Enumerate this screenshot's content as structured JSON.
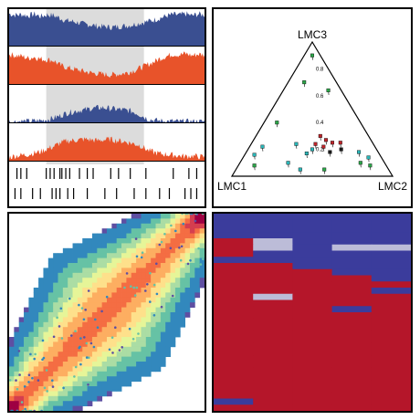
{
  "chart_data": [
    {
      "type": "area",
      "panel": "genome-tracks",
      "highlight_region_fraction": [
        0.19,
        0.69
      ],
      "series": [
        {
          "color": "#3a4f91",
          "values": [
            0.92,
            0.88,
            0.9,
            0.86,
            0.91,
            0.84,
            0.89,
            0.87,
            0.8,
            0.72,
            0.7,
            0.66,
            0.62,
            0.6,
            0.56,
            0.55,
            0.53,
            0.54,
            0.56,
            0.58,
            0.62,
            0.66,
            0.7,
            0.74,
            0.8,
            0.86,
            0.9,
            0.88,
            0.92,
            0.86,
            0.91,
            0.89
          ]
        },
        {
          "color": "#e8532a",
          "values": [
            0.85,
            0.82,
            0.8,
            0.74,
            0.78,
            0.72,
            0.7,
            0.68,
            0.55,
            0.48,
            0.44,
            0.4,
            0.36,
            0.32,
            0.3,
            0.28,
            0.26,
            0.28,
            0.3,
            0.34,
            0.4,
            0.48,
            0.56,
            0.64,
            0.74,
            0.8,
            0.86,
            0.84,
            0.88,
            0.82,
            0.86,
            0.84
          ]
        },
        {
          "color": "#3a4f91",
          "values": [
            0.02,
            0.02,
            0.03,
            0.03,
            0.04,
            0.05,
            0.08,
            0.12,
            0.18,
            0.26,
            0.3,
            0.34,
            0.36,
            0.4,
            0.42,
            0.42,
            0.4,
            0.38,
            0.36,
            0.34,
            0.28,
            0.2,
            0.1,
            0.06,
            0.04,
            0.03,
            0.03,
            0.02,
            0.02,
            0.02,
            0.02,
            0.02
          ]
        },
        {
          "color": "#e8532a",
          "values": [
            0.1,
            0.14,
            0.16,
            0.18,
            0.22,
            0.26,
            0.34,
            0.4,
            0.5,
            0.56,
            0.58,
            0.6,
            0.62,
            0.6,
            0.58,
            0.6,
            0.62,
            0.58,
            0.56,
            0.52,
            0.48,
            0.42,
            0.3,
            0.24,
            0.2,
            0.18,
            0.16,
            0.14,
            0.12,
            0.14,
            0.12,
            0.1
          ]
        }
      ],
      "ticks_row1": [
        0.04,
        0.06,
        0.09,
        0.19,
        0.21,
        0.23,
        0.26,
        0.27,
        0.29,
        0.31,
        0.36,
        0.4,
        0.43,
        0.52,
        0.56,
        0.62,
        0.7,
        0.84,
        0.92,
        0.96
      ],
      "ticks_row2": [
        0.03,
        0.06,
        0.12,
        0.16,
        0.22,
        0.24,
        0.26,
        0.3,
        0.33,
        0.4,
        0.49,
        0.55,
        0.64,
        0.7,
        0.77,
        0.82,
        0.9,
        0.93,
        0.96
      ]
    },
    {
      "type": "scatter",
      "panel": "ternary",
      "labels": {
        "top": "LMC3",
        "left": "LMC1",
        "right": "LMC2"
      },
      "tick_labels": [
        "0.8",
        "0.6",
        "0.4",
        "0.2"
      ],
      "points": [
        {
          "a": 0.05,
          "b": 0.05,
          "c": 0.9,
          "color": "#2da84a"
        },
        {
          "a": 0.2,
          "b": 0.1,
          "c": 0.7,
          "color": "#2da84a"
        },
        {
          "a": 0.08,
          "b": 0.28,
          "c": 0.64,
          "color": "#2da84a"
        },
        {
          "a": 0.52,
          "b": 0.08,
          "c": 0.4,
          "color": "#2da84a"
        },
        {
          "a": 0.3,
          "b": 0.4,
          "c": 0.3,
          "color": "#c0262b"
        },
        {
          "a": 0.28,
          "b": 0.45,
          "c": 0.27,
          "color": "#c0262b"
        },
        {
          "a": 0.25,
          "b": 0.5,
          "c": 0.25,
          "color": "#c0262b"
        },
        {
          "a": 0.32,
          "b": 0.46,
          "c": 0.22,
          "color": "#c0262b"
        },
        {
          "a": 0.36,
          "b": 0.4,
          "c": 0.24,
          "color": "#c0262b"
        },
        {
          "a": 0.2,
          "b": 0.55,
          "c": 0.25,
          "color": "#c0262b"
        },
        {
          "a": 0.22,
          "b": 0.58,
          "c": 0.2,
          "color": "#1a1a1a"
        },
        {
          "a": 0.3,
          "b": 0.52,
          "c": 0.18,
          "color": "#1a1a1a"
        },
        {
          "a": 0.4,
          "b": 0.4,
          "c": 0.2,
          "color": "#2bb6b8"
        },
        {
          "a": 0.45,
          "b": 0.38,
          "c": 0.17,
          "color": "#2bb6b8"
        },
        {
          "a": 0.7,
          "b": 0.08,
          "c": 0.22,
          "color": "#2bb6b8"
        },
        {
          "a": 0.78,
          "b": 0.06,
          "c": 0.16,
          "color": "#2bb6b8"
        },
        {
          "a": 0.82,
          "b": 0.1,
          "c": 0.08,
          "color": "#2da84a"
        },
        {
          "a": 0.6,
          "b": 0.3,
          "c": 0.1,
          "color": "#2bb6b8"
        },
        {
          "a": 0.55,
          "b": 0.4,
          "c": 0.05,
          "color": "#2bb6b8"
        },
        {
          "a": 0.15,
          "b": 0.75,
          "c": 0.1,
          "color": "#2da84a"
        },
        {
          "a": 0.1,
          "b": 0.82,
          "c": 0.08,
          "color": "#2da84a"
        },
        {
          "a": 0.08,
          "b": 0.78,
          "c": 0.14,
          "color": "#2bb6b8"
        },
        {
          "a": 0.12,
          "b": 0.7,
          "c": 0.18,
          "color": "#2bb6b8"
        },
        {
          "a": 0.4,
          "b": 0.55,
          "c": 0.05,
          "color": "#2da84a"
        },
        {
          "a": 0.48,
          "b": 0.28,
          "c": 0.24,
          "color": "#2bb6b8"
        }
      ]
    },
    {
      "type": "heatmap",
      "panel": "density",
      "diagonal_relationship": "y equals x",
      "colormap": [
        "#5e4fa2",
        "#3288bd",
        "#66c2a5",
        "#abdda4",
        "#e6f598",
        "#fee08b",
        "#fdae61",
        "#f46d43",
        "#d53e4f",
        "#9e0142"
      ]
    },
    {
      "type": "heatmap",
      "panel": "matrix",
      "colors": {
        "low": "#3b3c9c",
        "high": "#b5162a",
        "mid": "#bcbcd8"
      },
      "columns": 5,
      "rows": [
        [
          0,
          0,
          0,
          0,
          0
        ],
        [
          0,
          0,
          0,
          0,
          0
        ],
        [
          0,
          0,
          0,
          0,
          0
        ],
        [
          0,
          0,
          0,
          0,
          0
        ],
        [
          1,
          2,
          0,
          0,
          0
        ],
        [
          1,
          2,
          0,
          2,
          2
        ],
        [
          1,
          0,
          0,
          0,
          0
        ],
        [
          0,
          0,
          0,
          0,
          0
        ],
        [
          1,
          1,
          0,
          0,
          0
        ],
        [
          1,
          1,
          1,
          0,
          0
        ],
        [
          1,
          1,
          1,
          1,
          0
        ],
        [
          1,
          1,
          1,
          1,
          1
        ],
        [
          1,
          1,
          1,
          1,
          0
        ],
        [
          1,
          2,
          1,
          1,
          1
        ],
        [
          1,
          1,
          1,
          1,
          1
        ],
        [
          1,
          1,
          1,
          0,
          1
        ],
        [
          1,
          1,
          1,
          1,
          1
        ],
        [
          1,
          1,
          1,
          1,
          1
        ],
        [
          1,
          1,
          1,
          1,
          1
        ],
        [
          1,
          1,
          1,
          1,
          1
        ],
        [
          1,
          1,
          1,
          1,
          1
        ],
        [
          1,
          1,
          1,
          1,
          1
        ],
        [
          1,
          1,
          1,
          1,
          1
        ],
        [
          1,
          1,
          1,
          1,
          1
        ],
        [
          1,
          1,
          1,
          1,
          1
        ],
        [
          1,
          1,
          1,
          1,
          1
        ],
        [
          1,
          1,
          1,
          1,
          1
        ],
        [
          1,
          1,
          1,
          1,
          1
        ],
        [
          1,
          1,
          1,
          1,
          1
        ],
        [
          1,
          1,
          1,
          1,
          1
        ],
        [
          0,
          1,
          1,
          1,
          1
        ],
        [
          1,
          1,
          1,
          1,
          1
        ]
      ]
    }
  ]
}
